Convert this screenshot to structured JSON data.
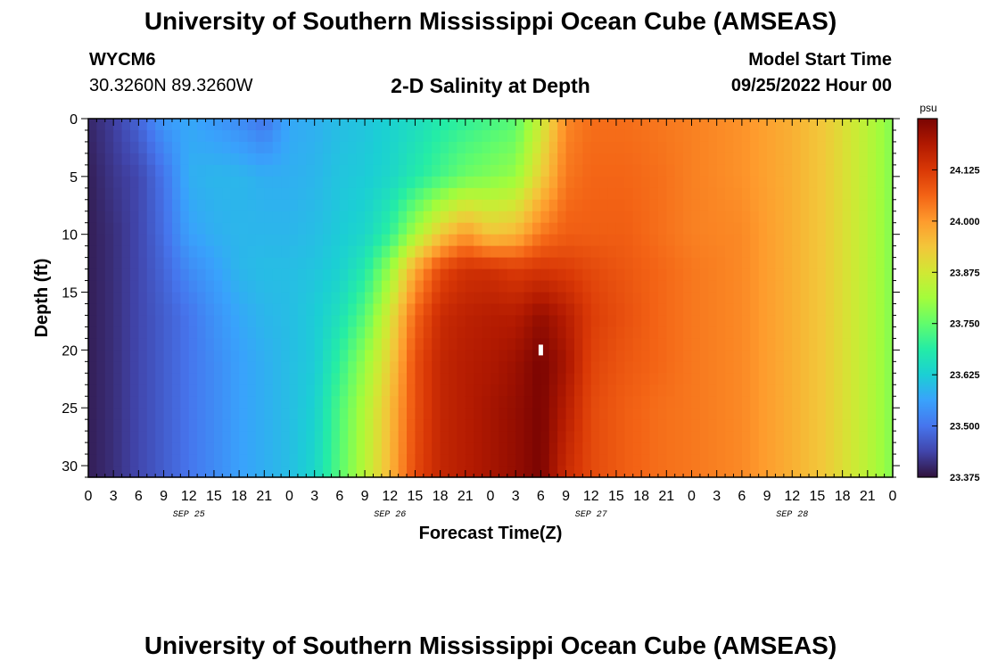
{
  "header": {
    "title": "University of Southern Mississippi Ocean Cube (AMSEAS)",
    "station_id": "WYCM6",
    "station_coords": "30.3260N  89.3260W",
    "subtitle": "2-D Salinity at Depth",
    "model_start_label": "Model Start Time",
    "model_start_value": "09/25/2022 Hour 00"
  },
  "footer": {
    "title": "University of Southern Mississippi Ocean Cube (AMSEAS)"
  },
  "chart_data": {
    "type": "heatmap",
    "xlabel": "Forecast Time(Z)",
    "ylabel": "Depth (ft)",
    "x_tick_labels": [
      "0",
      "3",
      "6",
      "9",
      "12",
      "15",
      "18",
      "21",
      "0",
      "3",
      "6",
      "9",
      "12",
      "15",
      "18",
      "21",
      "0",
      "3",
      "6",
      "9",
      "12",
      "15",
      "18",
      "21",
      "0",
      "3",
      "6",
      "9",
      "12",
      "15",
      "18",
      "21",
      "0"
    ],
    "date_labels": [
      "SEP 25",
      "SEP 26",
      "SEP 27",
      "SEP 28"
    ],
    "xlim_hours": [
      0,
      96
    ],
    "y_ticks": [
      0,
      5,
      10,
      15,
      20,
      25,
      30
    ],
    "ylim": [
      0,
      31
    ],
    "y_inverted": true,
    "colorbar": {
      "unit": "psu",
      "ticks": [
        "24.125",
        "24.000",
        "23.875",
        "23.750",
        "23.625",
        "23.500",
        "23.375"
      ],
      "range": [
        23.375,
        24.25
      ],
      "colors": [
        "#30123b",
        "#4145ab",
        "#4675ed",
        "#39a2fc",
        "#1bcfd4",
        "#24eca6",
        "#61fc6c",
        "#a4fc3b",
        "#d1e834",
        "#f3c63a",
        "#fe9b2d",
        "#f36315",
        "#d93806",
        "#b11901",
        "#7a0402"
      ]
    },
    "salinity_profiles": {
      "depths": [
        0,
        5,
        10,
        13,
        17,
        21,
        25,
        31
      ],
      "columns": [
        {
          "hour": 0,
          "values": [
            23.4,
            23.39,
            23.39,
            23.39,
            23.39,
            23.39,
            23.39,
            23.39
          ]
        },
        {
          "hour": 3,
          "values": [
            23.43,
            23.42,
            23.41,
            23.41,
            23.41,
            23.41,
            23.41,
            23.41
          ]
        },
        {
          "hour": 6,
          "values": [
            23.48,
            23.44,
            23.44,
            23.44,
            23.44,
            23.44,
            23.44,
            23.44
          ]
        },
        {
          "hour": 9,
          "values": [
            23.55,
            23.5,
            23.49,
            23.48,
            23.47,
            23.47,
            23.47,
            23.47
          ]
        },
        {
          "hour": 12,
          "values": [
            23.57,
            23.58,
            23.56,
            23.53,
            23.5,
            23.5,
            23.5,
            23.5
          ]
        },
        {
          "hour": 15,
          "values": [
            23.55,
            23.59,
            23.58,
            23.56,
            23.54,
            23.53,
            23.53,
            23.53
          ]
        },
        {
          "hour": 18,
          "values": [
            23.53,
            23.59,
            23.59,
            23.59,
            23.57,
            23.56,
            23.56,
            23.56
          ]
        },
        {
          "hour": 21,
          "values": [
            23.5,
            23.58,
            23.59,
            23.6,
            23.59,
            23.58,
            23.58,
            23.58
          ]
        },
        {
          "hour": 24,
          "values": [
            23.57,
            23.58,
            23.59,
            23.6,
            23.6,
            23.6,
            23.6,
            23.6
          ]
        },
        {
          "hour": 27,
          "values": [
            23.58,
            23.59,
            23.6,
            23.61,
            23.62,
            23.62,
            23.63,
            23.64
          ]
        },
        {
          "hour": 30,
          "values": [
            23.6,
            23.61,
            23.62,
            23.63,
            23.66,
            23.7,
            23.73,
            23.74
          ]
        },
        {
          "hour": 33,
          "values": [
            23.61,
            23.62,
            23.64,
            23.68,
            23.74,
            23.8,
            23.83,
            23.84
          ]
        },
        {
          "hour": 36,
          "values": [
            23.63,
            23.64,
            23.7,
            23.8,
            23.88,
            23.92,
            23.95,
            23.96
          ]
        },
        {
          "hour": 39,
          "values": [
            23.65,
            23.68,
            23.82,
            23.98,
            24.06,
            24.09,
            24.09,
            24.1
          ]
        },
        {
          "hour": 42,
          "values": [
            23.68,
            23.72,
            23.93,
            24.1,
            24.15,
            24.16,
            24.16,
            24.16
          ]
        },
        {
          "hour": 45,
          "values": [
            23.7,
            23.76,
            24.0,
            24.14,
            24.17,
            24.18,
            24.18,
            24.18
          ]
        },
        {
          "hour": 48,
          "values": [
            23.72,
            23.78,
            23.94,
            24.14,
            24.18,
            24.19,
            24.2,
            24.2
          ]
        },
        {
          "hour": 51,
          "values": [
            23.74,
            23.8,
            23.96,
            24.12,
            24.18,
            24.21,
            24.22,
            24.22
          ]
        },
        {
          "hour": 54,
          "values": [
            23.86,
            23.92,
            24.04,
            24.13,
            24.22,
            24.25,
            24.25,
            24.25
          ]
        },
        {
          "hour": 57,
          "values": [
            24.02,
            24.04,
            24.07,
            24.12,
            24.18,
            24.2,
            24.18,
            24.15
          ]
        },
        {
          "hour": 60,
          "values": [
            24.05,
            24.06,
            24.07,
            24.1,
            24.12,
            24.11,
            24.1,
            24.1
          ]
        },
        {
          "hour": 64,
          "values": [
            24.05,
            24.06,
            24.07,
            24.08,
            24.09,
            24.08,
            24.07,
            24.07
          ]
        },
        {
          "hour": 68,
          "values": [
            24.04,
            24.05,
            24.05,
            24.06,
            24.06,
            24.06,
            24.05,
            24.05
          ]
        },
        {
          "hour": 72,
          "values": [
            24.03,
            24.03,
            24.03,
            24.04,
            24.04,
            24.04,
            24.04,
            24.04
          ]
        },
        {
          "hour": 78,
          "values": [
            24.01,
            24.01,
            24.02,
            24.02,
            24.02,
            24.02,
            24.02,
            24.02
          ]
        },
        {
          "hour": 84,
          "values": [
            23.97,
            23.97,
            23.97,
            23.97,
            23.97,
            23.97,
            23.97,
            23.97
          ]
        },
        {
          "hour": 88,
          "values": [
            23.93,
            23.93,
            23.93,
            23.93,
            23.93,
            23.93,
            23.93,
            23.93
          ]
        },
        {
          "hour": 92,
          "values": [
            23.86,
            23.86,
            23.86,
            23.86,
            23.86,
            23.86,
            23.86,
            23.86
          ]
        },
        {
          "hour": 96,
          "values": [
            23.78,
            23.78,
            23.78,
            23.78,
            23.78,
            23.78,
            23.78,
            23.78
          ]
        }
      ]
    },
    "marker": {
      "hour": 54,
      "depth": 20
    }
  }
}
